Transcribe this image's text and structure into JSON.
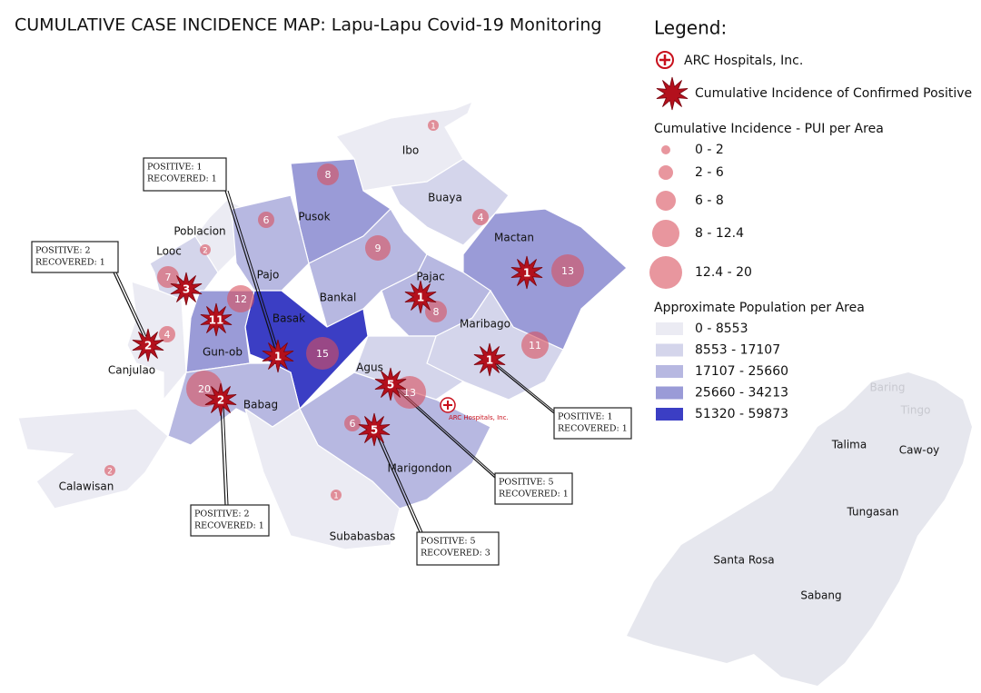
{
  "title": "CUMULATIVE CASE INCIDENCE MAP: Lapu-Lapu Covid-19 Monitoring",
  "legend": {
    "title": "Legend:",
    "hospital": "ARC Hospitals, Inc.",
    "star": "Cumulative Incidence of Confirmed Positive",
    "pui_title": "Cumulative Incidence - PUI per Area",
    "pui_classes": [
      "0 - 2",
      "2 - 6",
      "6 - 8",
      "8 - 12.4",
      "12.4 - 20"
    ],
    "pop_title": "Approximate Population per Area",
    "pop_classes": [
      {
        "label": "0 - 8553",
        "color": "#ebebf3"
      },
      {
        "label": "8553 - 17107",
        "color": "#d4d5eb"
      },
      {
        "label": "17107 - 25660",
        "color": "#b7b8e1"
      },
      {
        "label": "25660 - 34213",
        "color": "#9a9bd7"
      },
      {
        "label": "51320 - 59873",
        "color": "#3b3ec4"
      }
    ]
  },
  "map": {
    "hospital_label": "ARC Hospitals, Inc.",
    "areas": [
      "Ibo",
      "Pusok",
      "Buaya",
      "Mactan",
      "Poblacion",
      "Pajo",
      "Looc",
      "Bankal",
      "Pajac",
      "Basak",
      "Gun-ob",
      "Canjulao",
      "Maribago",
      "Agus",
      "Babag",
      "Marigondon",
      "Subabasbas",
      "Calawisan"
    ],
    "other_areas": [
      "Baring",
      "Tingo",
      "Talima",
      "Caw-oy",
      "Tungasan",
      "Santa Rosa",
      "Sabang"
    ],
    "pui": [
      1,
      8,
      6,
      4,
      2,
      9,
      7,
      12,
      4,
      13,
      8,
      15,
      11,
      13,
      20,
      6,
      2,
      1
    ],
    "positives": [
      3,
      11,
      2,
      1,
      1,
      1,
      1,
      5,
      5,
      2
    ],
    "callouts": [
      [
        "POSITIVE: 1",
        "RECOVERED: 1"
      ],
      [
        "POSITIVE: 2",
        "RECOVERED: 1"
      ],
      [
        "POSITIVE: 1",
        "RECOVERED: 1"
      ],
      [
        "POSITIVE: 5",
        "RECOVERED: 1"
      ],
      [
        "POSITIVE: 2",
        "RECOVERED: 1"
      ],
      [
        "POSITIVE: 5",
        "RECOVERED: 3"
      ]
    ]
  }
}
